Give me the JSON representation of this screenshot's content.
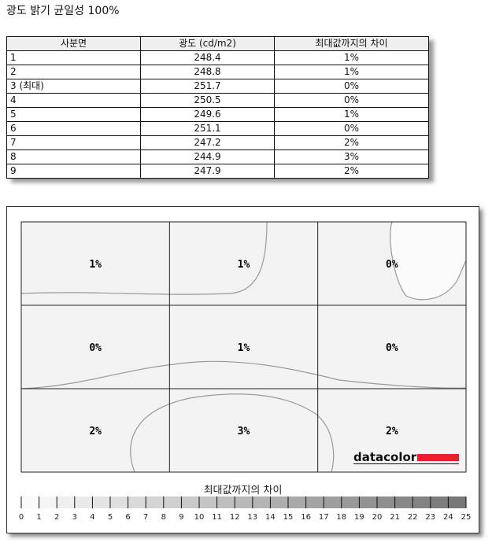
{
  "title": "광도 밝기 균일성 100%",
  "table": {
    "headers": [
      "사분면",
      "광도 (cd/m2)",
      "최대값까지의 차이"
    ],
    "rows": [
      [
        "1",
        "248.4",
        "1%"
      ],
      [
        "2",
        "248.8",
        "1%"
      ],
      [
        "3 (최대)",
        "251.7",
        "0%"
      ],
      [
        "4",
        "250.5",
        "0%"
      ],
      [
        "5",
        "249.6",
        "1%"
      ],
      [
        "6",
        "251.1",
        "0%"
      ],
      [
        "7",
        "247.2",
        "2%"
      ],
      [
        "8",
        "244.9",
        "3%"
      ],
      [
        "9",
        "247.9",
        "2%"
      ]
    ]
  },
  "chart_data": {
    "type": "heatmap",
    "grid": [
      [
        "1%",
        "1%",
        "0%"
      ],
      [
        "0%",
        "1%",
        "0%"
      ],
      [
        "2%",
        "3%",
        "2%"
      ]
    ],
    "values": [
      [
        1,
        1,
        0
      ],
      [
        0,
        1,
        0
      ],
      [
        2,
        3,
        2
      ]
    ],
    "legend_title": "최대값까지의 차이",
    "scale_ticks": [
      "0",
      "1",
      "2",
      "3",
      "4",
      "5",
      "6",
      "7",
      "8",
      "9",
      "10",
      "11",
      "12",
      "13",
      "14",
      "15",
      "16",
      "17",
      "18",
      "19",
      "20",
      "21",
      "22",
      "23",
      "24",
      "25"
    ],
    "scale_range": [
      0,
      25
    ],
    "logo": "datacolor",
    "colors": {
      "logo_bar": "#e8202a",
      "contour": "#999999"
    }
  }
}
